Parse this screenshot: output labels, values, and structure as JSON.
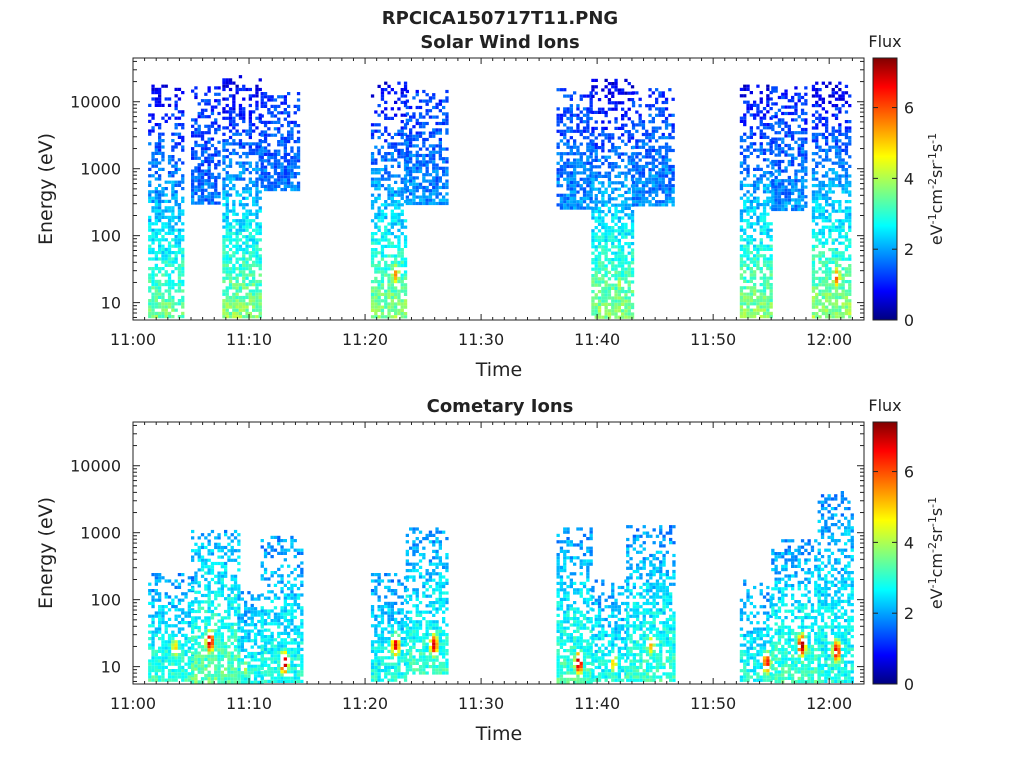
{
  "figure": {
    "title": "RPCICA150717T11.PNG"
  },
  "chart_data": [
    {
      "type": "heatmap",
      "title": "Solar Wind Ions",
      "xlabel": "Time",
      "ylabel": "Energy (eV)",
      "x_ticks": [
        "11:00",
        "11:10",
        "11:20",
        "11:30",
        "11:40",
        "11:50",
        "12:00"
      ],
      "y_ticks": [
        "10",
        "100",
        "1000",
        "10000"
      ],
      "y_scale": "log",
      "ylim": [
        5.5,
        45000
      ],
      "xlim_minutes": [
        0,
        63
      ],
      "colorbar": {
        "title": "Flux",
        "ticks": [
          "0",
          "2",
          "4",
          "6"
        ],
        "range": [
          0,
          7.4
        ]
      },
      "bursts": [
        {
          "t_start": 1.3,
          "t_end": 4.3,
          "e_low": 6,
          "e_high": 18000,
          "flux_low_e": 3.6,
          "flux_high_e": 0.8,
          "peak": null
        },
        {
          "t_start": 5.0,
          "t_end": 7.5,
          "e_low": 300,
          "e_high": 17000,
          "flux_low_e": 1.8,
          "flux_high_e": 1.2,
          "peak": null
        },
        {
          "t_start": 7.7,
          "t_end": 11.0,
          "e_low": 6,
          "e_high": 25000,
          "flux_low_e": 3.8,
          "flux_high_e": 0.7,
          "peak": null
        },
        {
          "t_start": 11.0,
          "t_end": 14.2,
          "e_low": 500,
          "e_high": 14000,
          "flux_low_e": 1.8,
          "flux_high_e": 1.3,
          "peak": null
        },
        {
          "t_start": 20.5,
          "t_end": 23.5,
          "e_low": 6,
          "e_high": 20000,
          "flux_low_e": 3.8,
          "flux_high_e": 0.8,
          "peak": {
            "t": 22.5,
            "e": 28,
            "flux": 5.5
          }
        },
        {
          "t_start": 23.5,
          "t_end": 27.0,
          "e_low": 300,
          "e_high": 15000,
          "flux_low_e": 2.0,
          "flux_high_e": 1.3,
          "peak": null
        },
        {
          "t_start": 36.5,
          "t_end": 39.5,
          "e_low": 250,
          "e_high": 16000,
          "flux_low_e": 2.0,
          "flux_high_e": 1.3,
          "peak": null
        },
        {
          "t_start": 39.5,
          "t_end": 43.0,
          "e_low": 6,
          "e_high": 22000,
          "flux_low_e": 3.8,
          "flux_high_e": 0.7,
          "peak": {
            "t": 41.8,
            "e": 20,
            "flux": 4.2
          }
        },
        {
          "t_start": 43.0,
          "t_end": 46.5,
          "e_low": 300,
          "e_high": 16000,
          "flux_low_e": 2.0,
          "flux_high_e": 1.3,
          "peak": null
        },
        {
          "t_start": 52.3,
          "t_end": 55.0,
          "e_low": 6,
          "e_high": 18000,
          "flux_low_e": 3.8,
          "flux_high_e": 0.8,
          "peak": {
            "t": 53.5,
            "e": 15,
            "flux": 4.0
          }
        },
        {
          "t_start": 55.0,
          "t_end": 58.0,
          "e_low": 250,
          "e_high": 17000,
          "flux_low_e": 2.0,
          "flux_high_e": 1.2,
          "peak": null
        },
        {
          "t_start": 58.5,
          "t_end": 61.8,
          "e_low": 6,
          "e_high": 20000,
          "flux_low_e": 3.9,
          "flux_high_e": 0.8,
          "peak": {
            "t": 60.5,
            "e": 25,
            "flux": 5.8
          }
        }
      ]
    },
    {
      "type": "heatmap",
      "title": "Cometary Ions",
      "xlabel": "Time",
      "ylabel": "Energy (eV)",
      "x_ticks": [
        "11:00",
        "11:10",
        "11:20",
        "11:30",
        "11:40",
        "11:50",
        "12:00"
      ],
      "y_ticks": [
        "10",
        "100",
        "1000",
        "10000"
      ],
      "y_scale": "log",
      "ylim": [
        5.5,
        45000
      ],
      "xlim_minutes": [
        0,
        63
      ],
      "colorbar": {
        "title": "Flux",
        "ticks": [
          "0",
          "2",
          "4",
          "6"
        ],
        "range": [
          0,
          7.4
        ]
      },
      "bursts": [
        {
          "t_start": 1.3,
          "t_end": 5.0,
          "e_low": 6,
          "e_high": 250,
          "flux_low_e": 3.2,
          "flux_high_e": 2.0,
          "peak": {
            "t": 3.5,
            "e": 20,
            "flux": 5.0
          }
        },
        {
          "t_start": 5.0,
          "t_end": 9.0,
          "e_low": 6,
          "e_high": 1100,
          "flux_low_e": 3.5,
          "flux_high_e": 2.2,
          "peak": {
            "t": 6.5,
            "e": 25,
            "flux": 7.0
          }
        },
        {
          "t_start": 9.0,
          "t_end": 11.0,
          "e_low": 6,
          "e_high": 150,
          "flux_low_e": 3.0,
          "flux_high_e": 2.0,
          "peak": {
            "t": 9.5,
            "e": 10,
            "flux": 4.2
          }
        },
        {
          "t_start": 11.0,
          "t_end": 14.5,
          "e_low": 6,
          "e_high": 900,
          "flux_low_e": 3.0,
          "flux_high_e": 2.0,
          "peak": {
            "t": 12.9,
            "e": 12,
            "flux": 7.2
          }
        },
        {
          "t_start": 20.5,
          "t_end": 23.5,
          "e_low": 6,
          "e_high": 250,
          "flux_low_e": 3.0,
          "flux_high_e": 2.0,
          "peak": {
            "t": 22.5,
            "e": 22,
            "flux": 6.8
          }
        },
        {
          "t_start": 23.5,
          "t_end": 27.0,
          "e_low": 8,
          "e_high": 1200,
          "flux_low_e": 3.2,
          "flux_high_e": 2.0,
          "peak": {
            "t": 25.8,
            "e": 22,
            "flux": 6.8
          }
        },
        {
          "t_start": 36.5,
          "t_end": 39.5,
          "e_low": 6,
          "e_high": 1200,
          "flux_low_e": 3.3,
          "flux_high_e": 2.0,
          "peak": {
            "t": 38.3,
            "e": 12,
            "flux": 7.2
          }
        },
        {
          "t_start": 39.5,
          "t_end": 42.5,
          "e_low": 6,
          "e_high": 200,
          "flux_low_e": 3.0,
          "flux_high_e": 2.0,
          "peak": {
            "t": 41.3,
            "e": 12,
            "flux": 5.0
          }
        },
        {
          "t_start": 42.5,
          "t_end": 46.5,
          "e_low": 6,
          "e_high": 1300,
          "flux_low_e": 3.2,
          "flux_high_e": 2.0,
          "peak": {
            "t": 44.5,
            "e": 22,
            "flux": 5.2
          }
        },
        {
          "t_start": 52.3,
          "t_end": 55.0,
          "e_low": 6,
          "e_high": 200,
          "flux_low_e": 3.0,
          "flux_high_e": 2.0,
          "peak": {
            "t": 54.5,
            "e": 12,
            "flux": 6.5
          }
        },
        {
          "t_start": 55.0,
          "t_end": 59.0,
          "e_low": 6,
          "e_high": 800,
          "flux_low_e": 3.3,
          "flux_high_e": 2.0,
          "peak": {
            "t": 57.5,
            "e": 22,
            "flux": 7.2
          }
        },
        {
          "t_start": 59.0,
          "t_end": 62.0,
          "e_low": 6,
          "e_high": 4200,
          "flux_low_e": 3.0,
          "flux_high_e": 2.0,
          "peak": {
            "t": 60.5,
            "e": 18,
            "flux": 6.8
          }
        }
      ]
    }
  ]
}
